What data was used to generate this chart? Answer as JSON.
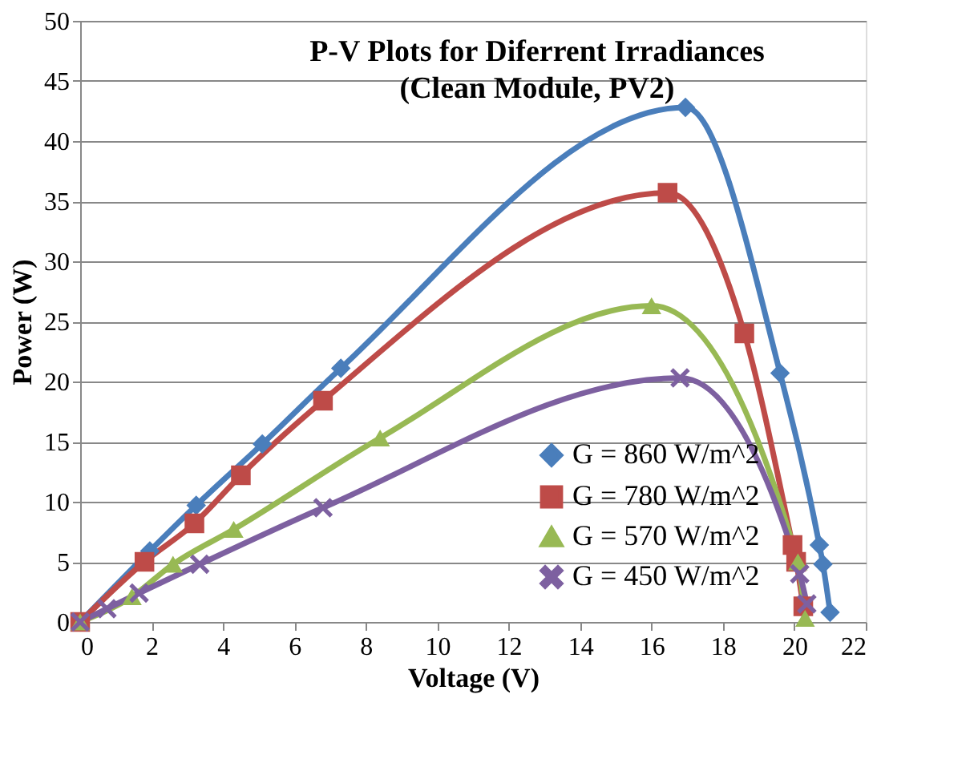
{
  "chart_data": {
    "type": "line",
    "title": "P-V Plots for Diferrent Irradiances",
    "subtitle": "(Clean Module, PV2)",
    "xlabel": "Voltage (V)",
    "ylabel": "Power (W)",
    "xlim": [
      0,
      22
    ],
    "xticks": [
      0,
      2,
      4,
      6,
      8,
      10,
      12,
      14,
      16,
      18,
      20,
      22
    ],
    "ylim": [
      0,
      50
    ],
    "yticks": [
      0,
      5,
      10,
      15,
      20,
      25,
      30,
      35,
      40,
      45,
      50
    ],
    "grid": "y",
    "legend": "right",
    "marker": "circle",
    "line_style": "solid",
    "series": [
      {
        "name": "G = 860 W/m^2",
        "color": "#4a7ebb",
        "marker": "diamond",
        "x": [
          0,
          1.95,
          3.25,
          5.1,
          7.3,
          16.95,
          19.6,
          20.7,
          20.8,
          21.0
        ],
        "values": [
          0,
          5.9,
          9.7,
          14.8,
          21.1,
          42.8,
          20.7,
          6.4,
          4.8,
          0.8
        ]
      },
      {
        "name": "G = 780 W/m^2",
        "color": "#be4b48",
        "marker": "square",
        "x": [
          0,
          1.8,
          3.2,
          4.5,
          6.8,
          16.45,
          18.6,
          19.95,
          20.05,
          20.25
        ],
        "values": [
          0,
          5,
          8.2,
          12.2,
          18.4,
          35.7,
          24,
          6.4,
          5,
          1.3
        ]
      },
      {
        "name": "G = 570 W/m^2",
        "color": "#98b954",
        "marker": "triangle",
        "x": [
          0,
          1.45,
          2.6,
          4.3,
          8.4,
          16.0,
          20.1,
          20.3
        ],
        "values": [
          0,
          2.1,
          4.8,
          7.7,
          15.3,
          26.3,
          5,
          0.3
        ]
      },
      {
        "name": "G = 450 W/m^2",
        "color": "#7d60a0",
        "marker": "cross",
        "x": [
          0,
          0.75,
          1.65,
          3.35,
          6.8,
          16.8,
          20.15,
          20.35
        ],
        "values": [
          0,
          1.1,
          2.4,
          4.8,
          9.5,
          20.3,
          4,
          1.5
        ]
      }
    ]
  }
}
